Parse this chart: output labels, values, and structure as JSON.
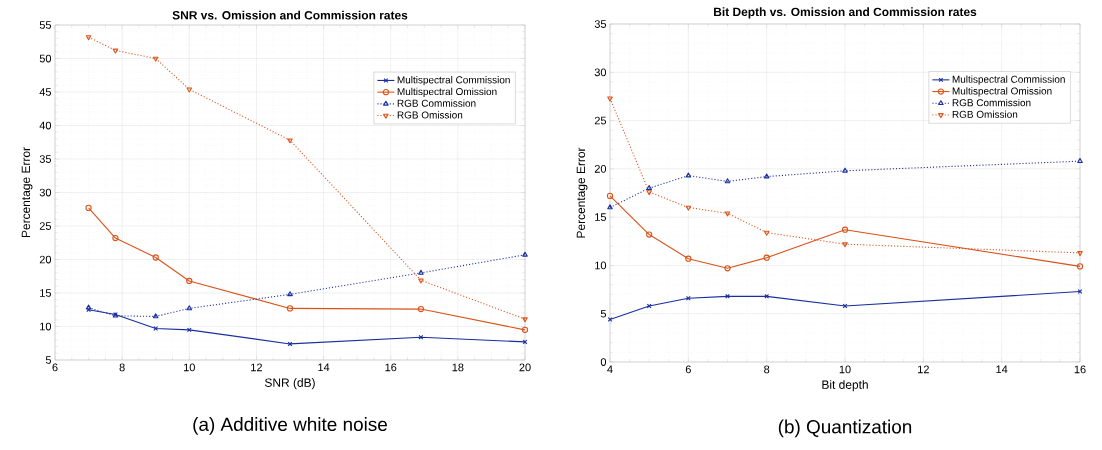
{
  "chart_data": [
    {
      "type": "line",
      "title": "SNR vs. Omission and Commission rates",
      "xlabel": "SNR (dB)",
      "ylabel": "Percentage Error",
      "x": [
        7,
        7.8,
        9,
        10,
        13,
        16.9,
        20
      ],
      "series": [
        {
          "name": "Multispectral Commission",
          "color": "#1a2ea0",
          "marker": "cross",
          "line_style": "solid",
          "values": [
            12.5,
            11.8,
            9.7,
            9.5,
            7.4,
            8.4,
            7.7
          ]
        },
        {
          "name": "Multispectral Omission",
          "color": "#d95319",
          "marker": "circle",
          "line_style": "solid",
          "values": [
            27.7,
            23.2,
            20.3,
            16.8,
            12.7,
            12.6,
            9.5
          ]
        },
        {
          "name": "RGB Commission",
          "color": "#1a2ea0",
          "marker": "triangle",
          "line_style": "dotted",
          "values": [
            12.8,
            11.6,
            11.5,
            12.7,
            14.8,
            18.0,
            20.7
          ]
        },
        {
          "name": "RGB Omission",
          "color": "#d95319",
          "marker": "triangle-down",
          "line_style": "dotted",
          "values": [
            53.2,
            51.2,
            50.0,
            45.4,
            37.8,
            16.9,
            11.1
          ]
        }
      ],
      "xlim": [
        6,
        20
      ],
      "xticks": [
        6,
        8,
        10,
        12,
        14,
        16,
        18,
        20
      ],
      "ylim": [
        5,
        55
      ],
      "yticks": [
        5,
        10,
        15,
        20,
        25,
        30,
        35,
        40,
        45,
        50,
        55
      ],
      "grid": true,
      "legend": "top right",
      "annotations": [
        "(a) Additive white noise"
      ]
    },
    {
      "type": "line",
      "title": "Bit Depth vs. Omission and Commission rates",
      "xlabel": "Bit depth",
      "ylabel": "Percentage Error",
      "x": [
        4,
        5,
        6,
        7,
        8,
        10,
        16
      ],
      "series": [
        {
          "name": "Multispectral Commission",
          "color": "#1a2ea0",
          "marker": "cross",
          "line_style": "solid",
          "values": [
            4.4,
            5.8,
            6.6,
            6.8,
            6.8,
            5.8,
            7.3
          ]
        },
        {
          "name": "Multispectral Omission",
          "color": "#d95319",
          "marker": "circle",
          "line_style": "solid",
          "values": [
            17.2,
            13.2,
            10.7,
            9.7,
            10.8,
            13.7,
            9.9
          ]
        },
        {
          "name": "RGB Commission",
          "color": "#1a2ea0",
          "marker": "triangle",
          "line_style": "dotted",
          "values": [
            16.0,
            18.0,
            19.3,
            18.7,
            19.2,
            19.8,
            20.8
          ]
        },
        {
          "name": "RGB Omission",
          "color": "#d95319",
          "marker": "triangle-down",
          "line_style": "dotted",
          "values": [
            27.3,
            17.6,
            16.0,
            15.4,
            13.4,
            12.2,
            11.3
          ]
        }
      ],
      "xlim": [
        4,
        16
      ],
      "xticks": [
        4,
        6,
        8,
        10,
        12,
        14,
        16
      ],
      "ylim": [
        0,
        35
      ],
      "yticks": [
        0,
        5,
        10,
        15,
        20,
        25,
        30,
        35
      ],
      "grid": true,
      "legend": "top right",
      "annotations": [
        "(b) Quantization"
      ]
    }
  ]
}
